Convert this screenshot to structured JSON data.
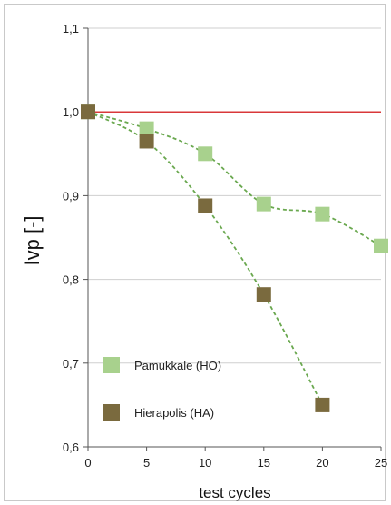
{
  "chart_data": {
    "type": "scatter",
    "xlabel": "test cycles",
    "ylabel": "Ivp [-]",
    "x_ticks": [
      "0",
      "5",
      "10",
      "15",
      "20",
      "25"
    ],
    "y_ticks": [
      "0,6",
      "0,7",
      "0,8",
      "0,9",
      "1,0",
      "1,1"
    ],
    "xlim": [
      0,
      25
    ],
    "ylim": [
      0.6,
      1.1
    ],
    "grid": "horizontal",
    "legend_position": "bottom-left",
    "reference_line": {
      "y": 1.0,
      "color": "#d9383a"
    },
    "series": [
      {
        "name": "Pamukkale (HO)",
        "color": "#a8d18d",
        "line_color": "#6aa84f",
        "line_style": "dashed",
        "points": [
          {
            "x": 0,
            "y": 1.0
          },
          {
            "x": 5,
            "y": 0.98
          },
          {
            "x": 10,
            "y": 0.95
          },
          {
            "x": 15,
            "y": 0.89
          },
          {
            "x": 20,
            "y": 0.878
          },
          {
            "x": 25,
            "y": 0.84
          }
        ]
      },
      {
        "name": "Hierapolis (HA)",
        "color": "#7a6a3e",
        "line_color": "#6aa84f",
        "line_style": "dashed",
        "points": [
          {
            "x": 0,
            "y": 1.0
          },
          {
            "x": 5,
            "y": 0.965
          },
          {
            "x": 10,
            "y": 0.888
          },
          {
            "x": 15,
            "y": 0.782
          },
          {
            "x": 20,
            "y": 0.65
          }
        ]
      }
    ]
  }
}
